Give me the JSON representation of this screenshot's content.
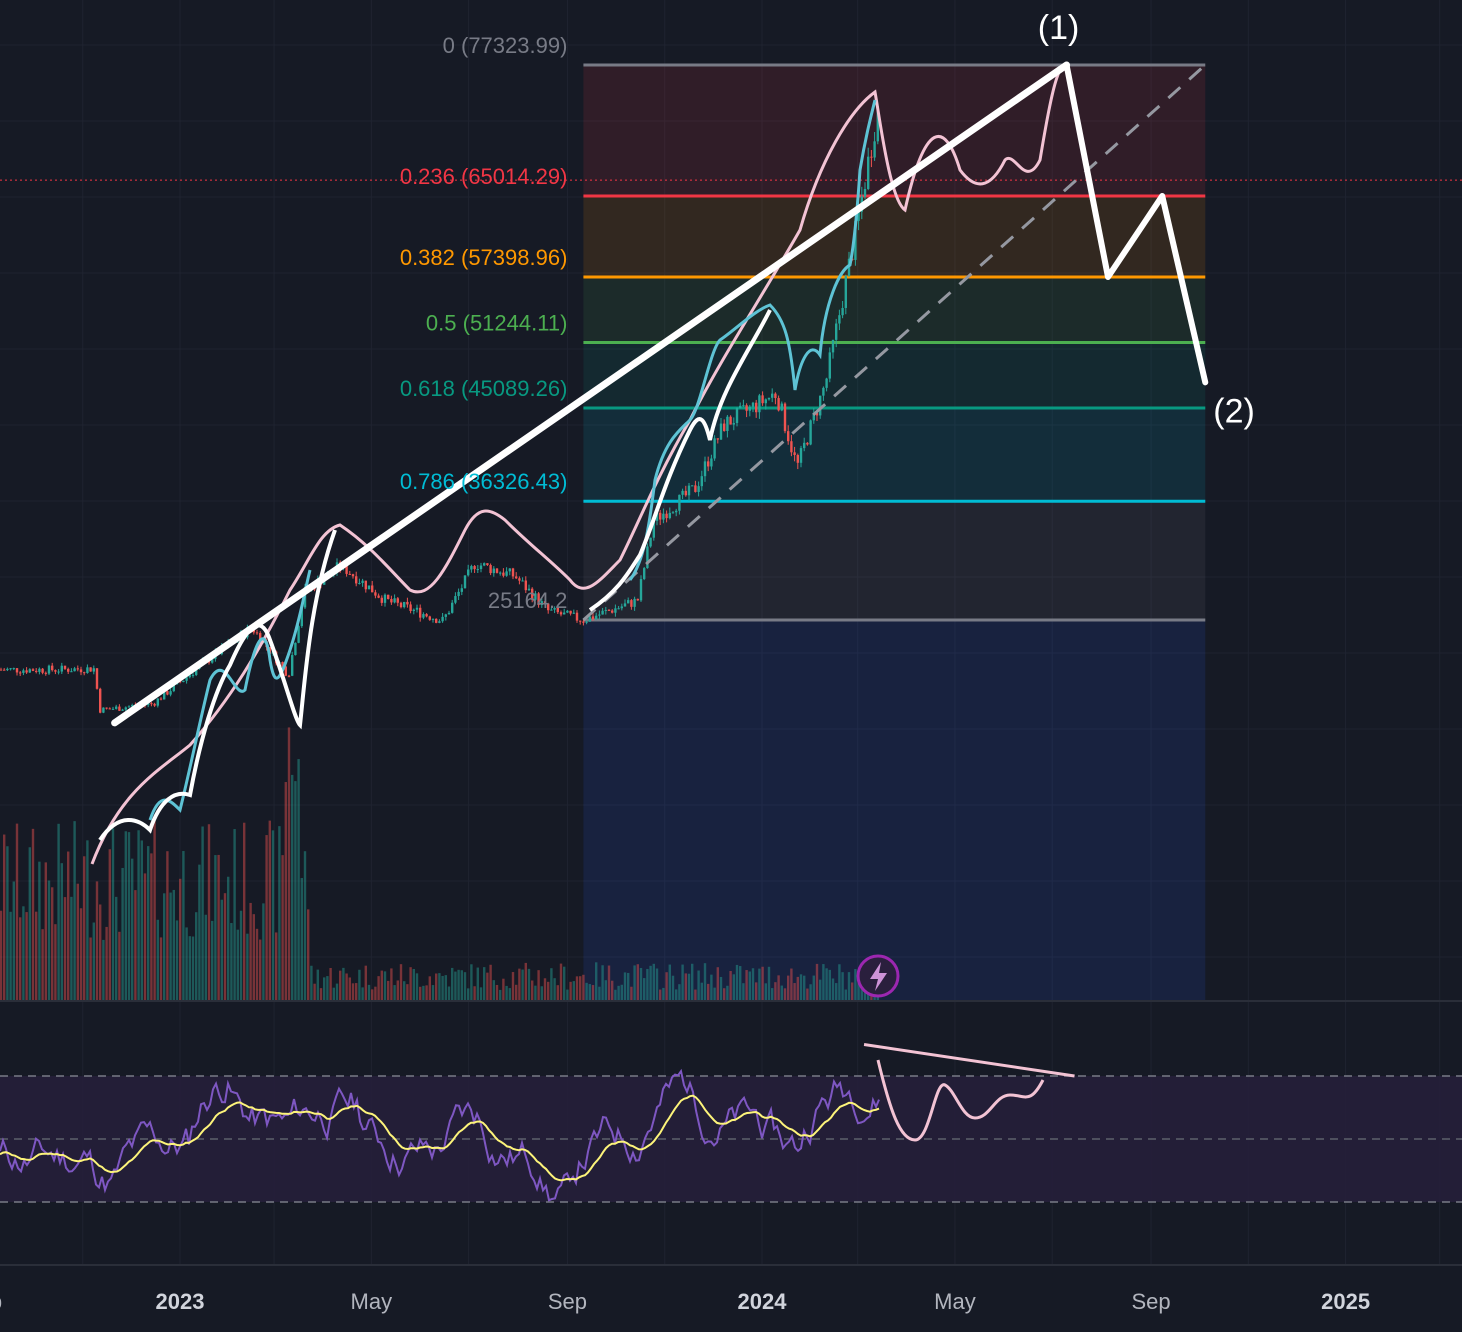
{
  "chart_data": {
    "type": "line",
    "x_axis": {
      "tick_labels": [
        {
          "label": "2023",
          "date": "2023-01-01",
          "emphasis": "year"
        },
        {
          "label": "May",
          "date": "2023-05-01"
        },
        {
          "label": "Sep",
          "date": "2023-09-01"
        },
        {
          "label": "2024",
          "date": "2024-01-01",
          "emphasis": "year"
        },
        {
          "label": "May",
          "date": "2024-05-01"
        },
        {
          "label": "Sep",
          "date": "2024-09-01"
        },
        {
          "label": "2025",
          "date": "2025-01-01",
          "emphasis": "year"
        }
      ],
      "left_edge_partial_label": "p"
    },
    "fibonacci": {
      "start_date": "2023-09-11",
      "end_date": "2024-10-05",
      "levels": [
        {
          "ratio": "0",
          "price": "77323.99",
          "text": "0 (77323.99)",
          "color": "#787b86"
        },
        {
          "ratio": "0.236",
          "price": "65014.29",
          "text": "0.236 (65014.29)",
          "color": "#f23645"
        },
        {
          "ratio": "0.382",
          "price": "57398.96",
          "text": "0.382 (57398.96)",
          "color": "#ff9800"
        },
        {
          "ratio": "0.5",
          "price": "51244.11",
          "text": "0.5 (51244.11)",
          "color": "#4caf50"
        },
        {
          "ratio": "0.618",
          "price": "45089.26",
          "text": "0.618 (45089.26)",
          "color": "#089981"
        },
        {
          "ratio": "0.786",
          "price": "36326.43",
          "text": "0.786 (36326.43)",
          "color": "#00bcd4"
        },
        {
          "ratio": "1",
          "price": "25164.2",
          "text": "25164.2",
          "color": "#787b86"
        }
      ]
    },
    "current_price_level": 66500,
    "wave_labels": [
      {
        "text": "(1)",
        "date": "2024-07-10",
        "price": 77323.99
      },
      {
        "text": "(2)",
        "date": "2024-10-05",
        "price": 47500
      }
    ],
    "projected_path": [
      {
        "date": "2024-07-10",
        "price": 77323.99
      },
      {
        "date": "2024-08-05",
        "price": 57398.96
      },
      {
        "date": "2024-09-08",
        "price": 65014.29
      },
      {
        "date": "2024-10-05",
        "price": 47500
      }
    ],
    "trendline": [
      {
        "date": "2022-11-21",
        "price": 15500
      },
      {
        "date": "2024-07-10",
        "price": 77323.99
      }
    ],
    "dashed_trendline": [
      {
        "date": "2023-09-11",
        "price": 25164.2
      },
      {
        "date": "2024-10-05",
        "price": 77323.99
      }
    ],
    "price_series": [
      {
        "date": "2022-10-15",
        "price": 20500
      },
      {
        "date": "2022-11-08",
        "price": 20600
      },
      {
        "date": "2022-11-12",
        "price": 16700
      },
      {
        "date": "2022-12-15",
        "price": 17300
      },
      {
        "date": "2023-01-15",
        "price": 21000
      },
      {
        "date": "2023-02-15",
        "price": 24500
      },
      {
        "date": "2023-03-10",
        "price": 20000
      },
      {
        "date": "2023-03-20",
        "price": 27800
      },
      {
        "date": "2023-04-12",
        "price": 30300
      },
      {
        "date": "2023-05-10",
        "price": 27000
      },
      {
        "date": "2023-06-15",
        "price": 25100
      },
      {
        "date": "2023-07-05",
        "price": 30500
      },
      {
        "date": "2023-07-30",
        "price": 29300
      },
      {
        "date": "2023-08-20",
        "price": 26000
      },
      {
        "date": "2023-09-11",
        "price": 25164
      },
      {
        "date": "2023-10-15",
        "price": 27000
      },
      {
        "date": "2023-10-25",
        "price": 34500
      },
      {
        "date": "2023-11-20",
        "price": 37500
      },
      {
        "date": "2023-12-08",
        "price": 43500
      },
      {
        "date": "2024-01-10",
        "price": 46500
      },
      {
        "date": "2024-01-23",
        "price": 39500
      },
      {
        "date": "2024-02-10",
        "price": 47500
      },
      {
        "date": "2024-02-28",
        "price": 61000
      },
      {
        "date": "2024-03-14",
        "price": 73500
      }
    ],
    "rsi_panel": {
      "divergence_line": [
        {
          "date": "2024-03-05",
          "rsi": 80
        },
        {
          "date": "2024-07-15",
          "rsi": 70
        }
      ]
    },
    "legend": "none",
    "grid": true
  }
}
